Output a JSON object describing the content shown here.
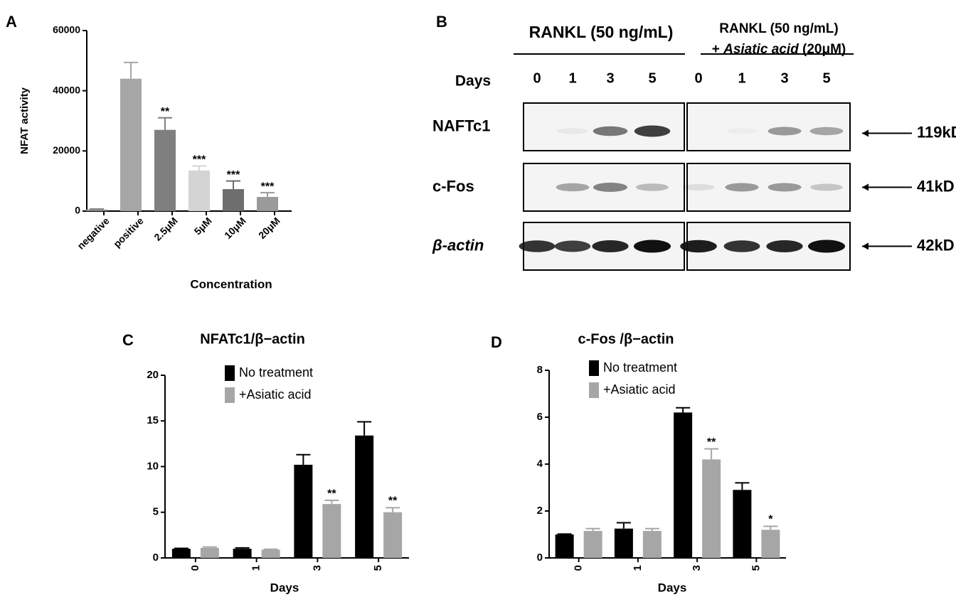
{
  "chart_data": [
    {
      "type": "bar",
      "panel_label": "A",
      "y_label": "NFAT activity",
      "x_label": "Concentration",
      "categories": [
        "negative",
        "positive",
        "2.5μM",
        "5μM",
        "10μM",
        "20μM"
      ],
      "values": [
        500,
        44000,
        27000,
        13500,
        7300,
        4700
      ],
      "errors": [
        200,
        5400,
        4000,
        1500,
        2700,
        1400
      ],
      "colors": [
        "#8a8a8a",
        "#a6a6a6",
        "#7f7f7f",
        "#d4d4d4",
        "#6e6e6e",
        "#9a9a9a"
      ],
      "sig_labels": [
        null,
        null,
        "**",
        "***",
        "***",
        "***"
      ],
      "ylim": [
        0,
        60000
      ],
      "yticks": [
        0,
        20000,
        40000,
        60000
      ]
    },
    {
      "type": "bar",
      "panel_label": "C",
      "title": "NFATc1/β−actin",
      "x_label": "Days",
      "categories": [
        "0",
        "1",
        "3",
        "5"
      ],
      "series": [
        {
          "name": "No treatment",
          "color": "#000000",
          "values": [
            1.0,
            1.0,
            10.2,
            13.4
          ],
          "errors": [
            0.05,
            0.1,
            1.1,
            1.5
          ],
          "sig_labels": [
            null,
            null,
            null,
            null
          ]
        },
        {
          "name": "+Asiatic acid",
          "color": "#a6a6a6",
          "values": [
            1.1,
            0.9,
            5.9,
            5.0
          ],
          "errors": [
            0.1,
            0.05,
            0.4,
            0.5
          ],
          "sig_labels": [
            null,
            null,
            "**",
            "**"
          ]
        }
      ],
      "ylim": [
        0,
        20
      ],
      "yticks": [
        0,
        5,
        10,
        15,
        20
      ]
    },
    {
      "type": "bar",
      "panel_label": "D",
      "title": "c-Fos /β−actin",
      "x_label": "Days",
      "categories": [
        "0",
        "1",
        "3",
        "5"
      ],
      "series": [
        {
          "name": "No treatment",
          "color": "#000000",
          "values": [
            1.0,
            1.25,
            6.2,
            2.9
          ],
          "errors": [
            0.02,
            0.25,
            0.2,
            0.3
          ],
          "sig_labels": [
            null,
            null,
            null,
            null
          ]
        },
        {
          "name": "+Asiatic acid",
          "color": "#a6a6a6",
          "values": [
            1.15,
            1.15,
            4.2,
            1.2
          ],
          "errors": [
            0.1,
            0.1,
            0.45,
            0.15
          ],
          "sig_labels": [
            null,
            null,
            "**",
            "*"
          ]
        }
      ],
      "ylim": [
        0,
        8
      ],
      "yticks": [
        0,
        2,
        4,
        6,
        8
      ]
    }
  ],
  "blot": {
    "panel_label": "B",
    "group_left": "RANKL (50 ng/mL)",
    "group_right_line1": "RANKL (50 ng/mL)",
    "group_right_line2": [
      "+ ",
      "Asiatic acid",
      " (20μM)"
    ],
    "days_label": "Days",
    "days": [
      "0",
      "1",
      "3",
      "5",
      "0",
      "1",
      "3",
      "5"
    ],
    "rows": [
      {
        "name": "NAFTc1",
        "size": "119kD"
      },
      {
        "name": "c-Fos",
        "size": "41kD"
      },
      {
        "name": "β-actin",
        "size": "42kD"
      }
    ]
  }
}
